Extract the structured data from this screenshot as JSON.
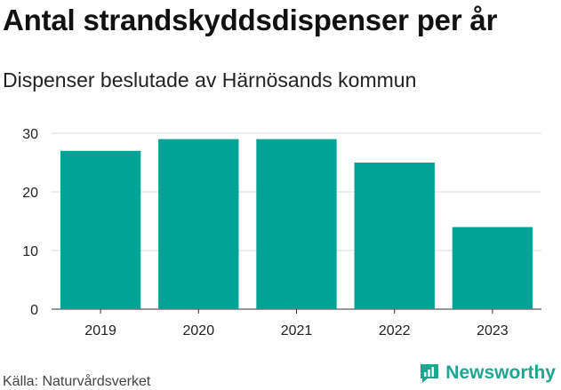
{
  "header": {
    "title": "Antal strandskyddsdispenser per år",
    "subtitle": "Dispenser beslutade av Härnösands kommun"
  },
  "footer": {
    "source": "Källa: Naturvårdsverket",
    "brand": "Newsworthy",
    "brand_icon": "newsworthy-logo-icon",
    "brand_color": "#20a591"
  },
  "chart_data": {
    "type": "bar",
    "title": "Antal strandskyddsdispenser per år",
    "subtitle": "Dispenser beslutade av Härnösands kommun",
    "categories": [
      "2019",
      "2020",
      "2021",
      "2022",
      "2023"
    ],
    "values": [
      27,
      29,
      29,
      25,
      14
    ],
    "xlabel": "",
    "ylabel": "",
    "ylim": [
      0,
      30
    ],
    "yticks": [
      0,
      10,
      20,
      30
    ],
    "grid": true,
    "legend": "none",
    "bar_color": "#00a396"
  }
}
